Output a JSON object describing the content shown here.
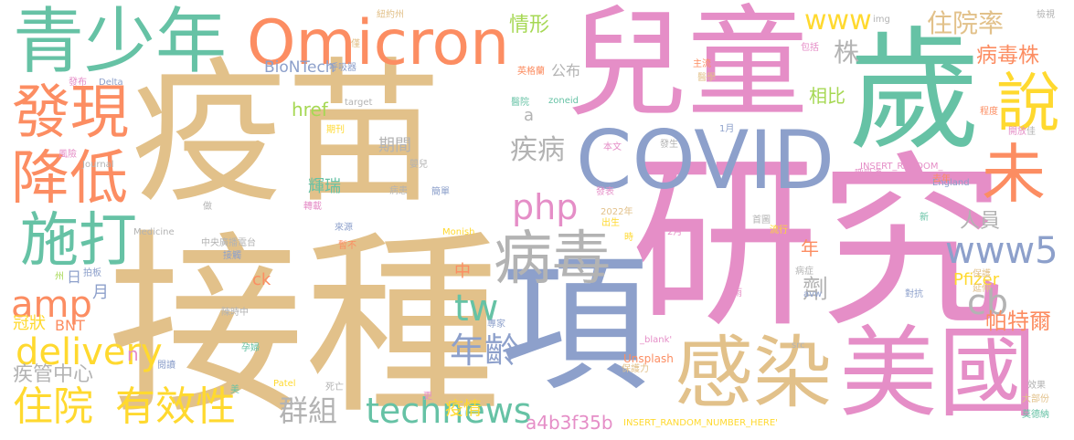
{
  "palette": {
    "tan": "#e2c18a",
    "pink": "#e58ec7",
    "green": "#66c2a5",
    "orange": "#fc8d62",
    "blue": "#8da0cb",
    "lime": "#a6d854",
    "yellow": "#ffd92f",
    "gray": "#b3b3b3"
  },
  "words": [
    {
      "text": "疫苗",
      "color": "tan"
    },
    {
      "text": "接種",
      "color": "tan"
    },
    {
      "text": "兒童",
      "color": "pink"
    },
    {
      "text": "研究",
      "color": "pink"
    },
    {
      "text": "歲",
      "color": "green"
    },
    {
      "text": "項",
      "color": "blue"
    },
    {
      "text": "青少年",
      "color": "green"
    },
    {
      "text": "Omicron",
      "color": "orange"
    },
    {
      "text": "COVID",
      "color": "blue"
    },
    {
      "text": "美國",
      "color": "pink"
    },
    {
      "text": "感染",
      "color": "tan"
    },
    {
      "text": "發現",
      "color": "orange"
    },
    {
      "text": "降低",
      "color": "orange"
    },
    {
      "text": "施打",
      "color": "green"
    },
    {
      "text": "病毒",
      "color": "gray"
    },
    {
      "text": "說",
      "color": "yellow"
    },
    {
      "text": "未",
      "color": "orange"
    },
    {
      "text": "www5",
      "color": "blue"
    },
    {
      "text": "technews",
      "color": "green"
    },
    {
      "text": "有效性",
      "color": "yellow"
    },
    {
      "text": "住院",
      "color": "yellow"
    },
    {
      "text": "delivery",
      "color": "yellow"
    },
    {
      "text": "amp",
      "color": "orange"
    },
    {
      "text": "年齡",
      "color": "blue"
    },
    {
      "text": "疾病",
      "color": "gray"
    },
    {
      "text": "php",
      "color": "pink"
    },
    {
      "text": "tw",
      "color": "green"
    },
    {
      "text": "cb",
      "color": "gray"
    },
    {
      "text": "www",
      "color": "yellow"
    },
    {
      "text": "住院率",
      "color": "tan"
    },
    {
      "text": "病毒株",
      "color": "orange"
    },
    {
      "text": "疾管中心",
      "color": "gray"
    },
    {
      "text": "群組",
      "color": "gray"
    },
    {
      "text": "帕特爾",
      "color": "orange"
    },
    {
      "text": "人員",
      "color": "gray"
    },
    {
      "text": "劑",
      "color": "gray"
    },
    {
      "text": "Pfizer",
      "color": "yellow"
    },
    {
      "text": "a4b3f35b",
      "color": "pink"
    },
    {
      "text": "BioNTech",
      "color": "blue"
    },
    {
      "text": "情形",
      "color": "lime"
    },
    {
      "text": "公布",
      "color": "gray"
    },
    {
      "text": "株",
      "color": "gray"
    },
    {
      "text": "相比",
      "color": "lime"
    },
    {
      "text": "輝瑞",
      "color": "green"
    },
    {
      "text": "期間",
      "color": "gray"
    },
    {
      "text": "href",
      "color": "lime"
    },
    {
      "text": "冠狀",
      "color": "yellow"
    },
    {
      "text": "BNT",
      "color": "orange"
    },
    {
      "text": "日",
      "color": "blue"
    },
    {
      "text": "月",
      "color": "blue"
    },
    {
      "text": "ck",
      "color": "orange"
    },
    {
      "text": "中",
      "color": "orange"
    },
    {
      "text": "年",
      "color": "orange"
    },
    {
      "text": "疫情",
      "color": "yellow"
    },
    {
      "text": "a",
      "color": "gray"
    },
    {
      "text": "n",
      "color": "pink"
    },
    {
      "text": "Unsplash",
      "color": "orange"
    },
    {
      "text": "INSERT_RANDOM_",
      "color": "pink"
    },
    {
      "text": "INSERT_RANDOM_NUMBER_HERE'",
      "color": "yellow"
    },
    {
      "text": "England",
      "color": "blue"
    },
    {
      "text": "呼吸器",
      "color": "blue"
    },
    {
      "text": "英格蘭",
      "color": "orange"
    },
    {
      "text": "主流",
      "color": "orange"
    },
    {
      "text": "醫學",
      "color": "tan"
    },
    {
      "text": "醫院",
      "color": "green"
    },
    {
      "text": "zoneid",
      "color": "green"
    },
    {
      "text": "target",
      "color": "gray"
    },
    {
      "text": "紐約州",
      "color": "tan"
    },
    {
      "text": "僅",
      "color": "tan"
    },
    {
      "text": "img",
      "color": "gray"
    },
    {
      "text": "包括",
      "color": "pink"
    },
    {
      "text": "檢視",
      "color": "gray"
    },
    {
      "text": "Delta",
      "color": "blue"
    },
    {
      "text": "發布",
      "color": "pink"
    },
    {
      "text": "期刊",
      "color": "yellow"
    },
    {
      "text": "嬰兒",
      "color": "gray"
    },
    {
      "text": "本文",
      "color": "pink"
    },
    {
      "text": "發生",
      "color": "gray"
    },
    {
      "text": "1月",
      "color": "blue"
    },
    {
      "text": "程度",
      "color": "orange"
    },
    {
      "text": "開放",
      "color": "pink"
    },
    {
      "text": "佳",
      "color": "gray"
    },
    {
      "text": "呼吸道",
      "color": "pink"
    },
    {
      "text": "去年",
      "color": "orange"
    },
    {
      "text": "風險",
      "color": "pink"
    },
    {
      "text": "Journal",
      "color": "gray"
    },
    {
      "text": "病患",
      "color": "gray"
    },
    {
      "text": "簡單",
      "color": "blue"
    },
    {
      "text": "發表",
      "color": "pink"
    },
    {
      "text": "2022年",
      "color": "tan"
    },
    {
      "text": "出生",
      "color": "yellow"
    },
    {
      "text": "首圖",
      "color": "gray"
    },
    {
      "text": "流行",
      "color": "yellow"
    },
    {
      "text": "新",
      "color": "green"
    },
    {
      "text": "做",
      "color": "gray"
    },
    {
      "text": "轉載",
      "color": "pink"
    },
    {
      "text": "來源",
      "color": "blue"
    },
    {
      "text": "Medicine",
      "color": "gray"
    },
    {
      "text": "中央廣播電台",
      "color": "gray"
    },
    {
      "text": "Monish",
      "color": "yellow"
    },
    {
      "text": "時",
      "color": "yellow"
    },
    {
      "text": "2月",
      "color": "pink"
    },
    {
      "text": "州",
      "color": "lime"
    },
    {
      "text": "拍板",
      "color": "blue"
    },
    {
      "text": "暫不",
      "color": "orange"
    },
    {
      "text": "接觸",
      "color": "blue"
    },
    {
      "text": "病症",
      "color": "gray"
    },
    {
      "text": "保護",
      "color": "tan"
    },
    {
      "text": "avw",
      "color": "blue"
    },
    {
      "text": "延伸",
      "color": "tan"
    },
    {
      "text": "對抗",
      "color": "blue"
    },
    {
      "text": "雨",
      "color": "pink"
    },
    {
      "text": "陳時中",
      "color": "gray"
    },
    {
      "text": "專家",
      "color": "blue"
    },
    {
      "text": "_blank'",
      "color": "pink"
    },
    {
      "text": "src",
      "color": "gray"
    },
    {
      "text": "孕婦",
      "color": "green"
    },
    {
      "text": "保護力",
      "color": "tan"
    },
    {
      "text": "閱讀",
      "color": "blue"
    },
    {
      "text": "Patel",
      "color": "yellow"
    },
    {
      "text": "死亡",
      "color": "gray"
    },
    {
      "text": "美",
      "color": "green"
    },
    {
      "text": "更",
      "color": "pink"
    },
    {
      "text": "效果",
      "color": "gray"
    },
    {
      "text": "大部份",
      "color": "tan"
    },
    {
      "text": "莫德納",
      "color": "green"
    }
  ]
}
